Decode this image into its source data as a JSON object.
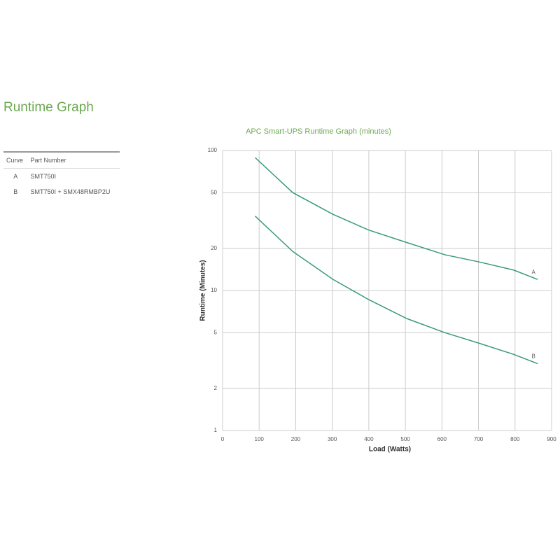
{
  "header": {
    "title": "Runtime Graph"
  },
  "table": {
    "columns": [
      "Curve",
      "Part Number"
    ],
    "rows": [
      [
        "A",
        "SMT750I"
      ],
      [
        "B",
        "SMT750I + SMX48RMBP2U"
      ]
    ]
  },
  "chart_data": {
    "type": "line",
    "title": "APC Smart-UPS Runtime Graph (minutes)",
    "x_label": "Load (Watts)",
    "y_label": "Runtime (Minutes)",
    "x": [
      89,
      192,
      302,
      400,
      504,
      608,
      702,
      796,
      862
    ],
    "series": [
      {
        "name": "A",
        "color": "#3a9a7a",
        "values": [
          89,
          50,
          35,
          27,
          22,
          18,
          16,
          14,
          12
        ]
      },
      {
        "name": "B",
        "color": "#3a9a7a",
        "values": [
          34,
          19,
          12,
          8.6,
          6.3,
          5,
          4.2,
          3.5,
          3
        ]
      }
    ],
    "xlim": [
      0,
      900
    ],
    "xticks": [
      0,
      100,
      200,
      300,
      400,
      500,
      600,
      700,
      800,
      900
    ],
    "ylim": [
      1,
      100
    ],
    "yticks": [
      1,
      2,
      5,
      10,
      20,
      50,
      100
    ],
    "log_y": true,
    "grid": true
  }
}
